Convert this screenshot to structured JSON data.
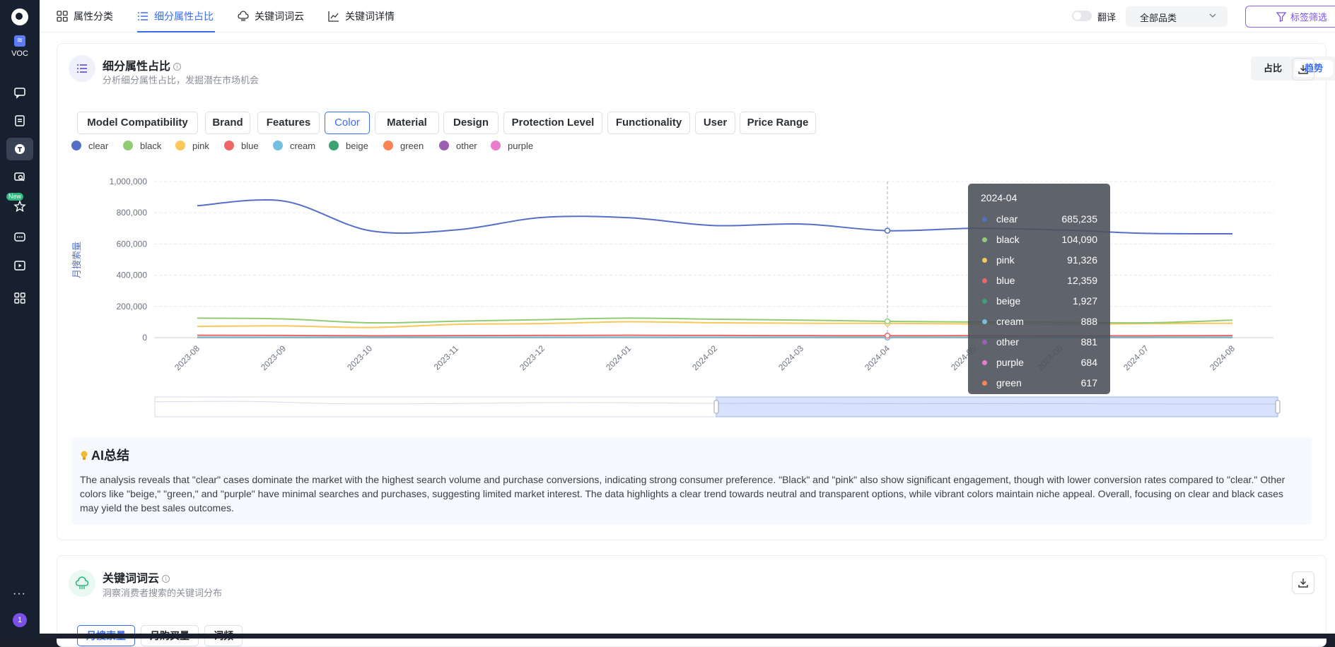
{
  "sidebar": {
    "app_label": "VOC",
    "new_badge": "New",
    "more": "···",
    "user_badge": "1"
  },
  "top_tabs": [
    {
      "label": "属性分类",
      "icon": "grid-icon"
    },
    {
      "label": "细分属性占比",
      "icon": "list-icon"
    },
    {
      "label": "关键词词云",
      "icon": "cloud-icon"
    },
    {
      "label": "关键词详情",
      "icon": "line-chart-icon"
    }
  ],
  "translate_label": "翻译",
  "category_select": "全部品类",
  "filter_button": "标签筛选",
  "card1": {
    "title": "细分属性占比",
    "subtitle": "分析细分属性占比，发掘潜在市场机会",
    "seg_left": "占比",
    "seg_right": "趋势",
    "attr_tabs": [
      "Model Compatibility",
      "Brand",
      "Features",
      "Color",
      "Material",
      "Design",
      "Protection Level",
      "Functionality",
      "User",
      "Price Range"
    ],
    "active_attr": "Color"
  },
  "chart_data": {
    "type": "line",
    "ylabel": "月搜索量",
    "ylim": [
      0,
      1000000
    ],
    "yticks": [
      "0",
      "200,000",
      "400,000",
      "600,000",
      "800,000",
      "1,000,000"
    ],
    "x": [
      "2023-08",
      "2023-09",
      "2023-10",
      "2023-11",
      "2023-12",
      "2024-01",
      "2024-02",
      "2024-03",
      "2024-04",
      "2024-05",
      "2024-06",
      "2024-07",
      "2024-08"
    ],
    "legend_position": "top-left",
    "grid": true,
    "series": [
      {
        "name": "clear",
        "color": "#5470c6",
        "values": [
          845000,
          875000,
          685000,
          690000,
          770000,
          768000,
          718000,
          728000,
          685235,
          700000,
          690000,
          668000,
          665000
        ]
      },
      {
        "name": "black",
        "color": "#91cc75",
        "values": [
          125000,
          120000,
          95000,
          105000,
          115000,
          125000,
          118000,
          112000,
          104090,
          100000,
          98000,
          95000,
          112000
        ]
      },
      {
        "name": "pink",
        "color": "#fac858",
        "values": [
          72000,
          75000,
          65000,
          85000,
          90000,
          102000,
          95000,
          92000,
          91326,
          88000,
          85000,
          90000,
          92000
        ]
      },
      {
        "name": "blue",
        "color": "#ee6666",
        "values": [
          15000,
          14000,
          12000,
          13000,
          14000,
          15000,
          14000,
          13000,
          12359,
          13000,
          12000,
          12000,
          13000
        ]
      },
      {
        "name": "cream",
        "color": "#73c0de",
        "values": [
          900,
          900,
          880,
          890,
          900,
          900,
          890,
          890,
          888,
          890,
          880,
          880,
          890
        ]
      },
      {
        "name": "beige",
        "color": "#3ba272",
        "values": [
          2000,
          1950,
          1900,
          1900,
          1950,
          2000,
          1950,
          1930,
          1927,
          1920,
          1900,
          1900,
          1910
        ]
      },
      {
        "name": "green",
        "color": "#fc8452",
        "values": [
          620,
          620,
          610,
          615,
          620,
          625,
          620,
          618,
          617,
          615,
          612,
          610,
          615
        ]
      },
      {
        "name": "other",
        "color": "#9a60b4",
        "values": [
          880,
          885,
          870,
          875,
          880,
          890,
          885,
          882,
          881,
          880,
          875,
          870,
          878
        ]
      },
      {
        "name": "purple",
        "color": "#ea7ccc",
        "values": [
          690,
          690,
          680,
          685,
          690,
          695,
          690,
          686,
          684,
          685,
          680,
          680,
          684
        ]
      }
    ],
    "tooltip": {
      "title": "2024-04",
      "rows": [
        {
          "name": "clear",
          "color": "#5470c6",
          "value": "685,235"
        },
        {
          "name": "black",
          "color": "#91cc75",
          "value": "104,090"
        },
        {
          "name": "pink",
          "color": "#fac858",
          "value": "91,326"
        },
        {
          "name": "blue",
          "color": "#ee6666",
          "value": "12,359"
        },
        {
          "name": "beige",
          "color": "#3ba272",
          "value": "1,927"
        },
        {
          "name": "cream",
          "color": "#73c0de",
          "value": "888"
        },
        {
          "name": "other",
          "color": "#9a60b4",
          "value": "881"
        },
        {
          "name": "purple",
          "color": "#ea7ccc",
          "value": "684"
        },
        {
          "name": "green",
          "color": "#fc8452",
          "value": "617"
        }
      ]
    }
  },
  "ai_summary": {
    "title": "AI总结",
    "text": "The analysis reveals that \"clear\" cases dominate the market with the highest search volume and purchase conversions, indicating strong consumer preference. \"Black\" and \"pink\" also show significant engagement, though with lower conversion rates compared to \"clear.\" Other colors like \"beige,\" \"green,\" and \"purple\" have minimal searches and purchases, suggesting limited market interest. The data highlights a clear trend towards neutral and transparent options, while vibrant colors maintain niche appeal. Overall, focusing on clear and black cases may yield the best sales outcomes."
  },
  "card2": {
    "title": "关键词词云",
    "subtitle": "洞察消费者搜索的关键词分布",
    "tabs": [
      "月搜索量",
      "月购买量",
      "词频"
    ]
  }
}
